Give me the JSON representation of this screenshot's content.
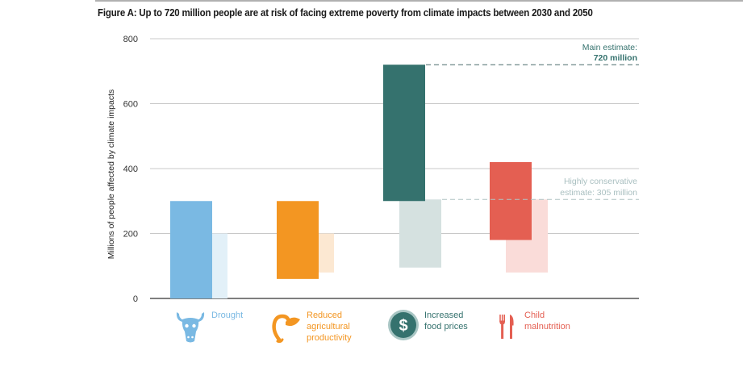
{
  "chart_data": {
    "type": "bar",
    "subtype": "floating-range-bar",
    "title": "Figure A: Up to 720 million people are at risk of facing extreme poverty from climate impacts between 2030 and 2050",
    "ylabel": "Millions of people affected by climate impacts",
    "xlabel": "",
    "ylim": [
      0,
      800
    ],
    "yticks": [
      0,
      200,
      400,
      600,
      800
    ],
    "grid": true,
    "categories": [
      "Drought",
      "Reduced agricultural productivity",
      "Increased food prices",
      "Child malnutrition"
    ],
    "series": [
      {
        "name": "Main estimate range",
        "ranges": [
          [
            0,
            300
          ],
          [
            60,
            300
          ],
          [
            300,
            720
          ],
          [
            180,
            420
          ]
        ]
      },
      {
        "name": "Highly conservative estimate range",
        "ranges": [
          [
            0,
            200
          ],
          [
            80,
            200
          ],
          [
            95,
            305
          ],
          [
            80,
            305
          ]
        ]
      }
    ],
    "colors": {
      "dark": [
        "#7ab9e3",
        "#f39622",
        "#35726e",
        "#e45f52"
      ],
      "light": [
        "#e2f0f8",
        "#fce8d2",
        "#d5e1e0",
        "#fadcd9"
      ]
    },
    "annotations": [
      {
        "line1": "Main estimate:",
        "line2": "720 million",
        "value": 720,
        "color": "#35726e"
      },
      {
        "line1": "Highly conservative",
        "line2": "estimate: 305 million",
        "value": 305,
        "color": "#a9bfc0"
      }
    ]
  },
  "legend": [
    {
      "icon": "cow-skull-icon",
      "lines": [
        "Drought"
      ],
      "color": "#7ab9e3"
    },
    {
      "icon": "plant-sprout-icon",
      "lines": [
        "Reduced",
        "agricultural",
        "productivity"
      ],
      "color": "#f39622"
    },
    {
      "icon": "dollar-coin-icon",
      "lines": [
        "Increased",
        "food prices"
      ],
      "color": "#35726e"
    },
    {
      "icon": "fork-knife-icon",
      "lines": [
        "Child",
        "malnutrition"
      ],
      "color": "#e45f52"
    }
  ]
}
